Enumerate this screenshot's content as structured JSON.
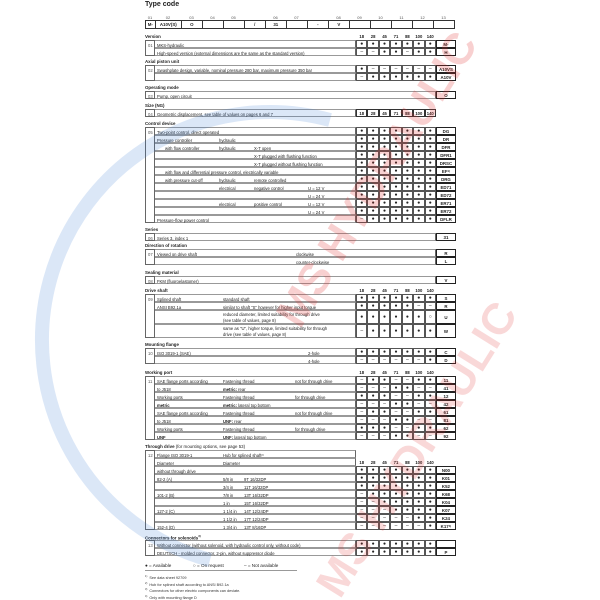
{
  "title": "Type code",
  "type_code": {
    "labels": [
      "01",
      "02",
      "03",
      "04",
      "05",
      "",
      "06",
      "07",
      "",
      "08",
      "09",
      "10",
      "11",
      "12",
      "13"
    ],
    "values": [
      "M-",
      "A10V(S)",
      "O",
      "",
      "",
      "/",
      "31",
      "",
      "-",
      "V",
      "",
      "",
      "",
      "",
      ""
    ]
  },
  "sizes": [
    "18",
    "28",
    "45",
    "71",
    "88",
    "100",
    "140"
  ],
  "sections": [
    {
      "id": "version",
      "num": "01",
      "title": "Version",
      "sizes_header": true,
      "rows": [
        {
          "desc": [
            "MKS-hydraulic"
          ],
          "m": "●●●●●●●",
          "code": "M-"
        },
        {
          "desc": [
            "High-speed version (external dimensions are the same as the standard version)"
          ],
          "m": "––●●–●●",
          "code": "H"
        }
      ]
    },
    {
      "id": "axial",
      "num": "02",
      "title": "Axial piston unit",
      "rows": [
        {
          "desc": [
            "Swashplate design, variable, nominal pressure 280 bar, maximum pressure 350 bar"
          ],
          "m": "●––––––",
          "code": "A10VS"
        },
        {
          "desc": [
            ""
          ],
          "m": "–●●●●●●",
          "code": "A10V"
        }
      ]
    },
    {
      "id": "opmode",
      "num": "03",
      "title": "Operating mode",
      "rows": [
        {
          "desc": [
            "Pump, open circuit"
          ],
          "code": "O"
        }
      ]
    },
    {
      "id": "size",
      "num": "04",
      "title": "Size (NG)",
      "rows": [
        {
          "desc": [
            "Geometric displacement, see table of values on pages 6 and 7"
          ],
          "sizes_box": true
        }
      ]
    },
    {
      "id": "control",
      "num": "05",
      "title": "Control device",
      "rows": [
        {
          "desc": [
            "Two-point control, direct operated"
          ],
          "m": "●●●●●●●",
          "code": "DG"
        },
        {
          "desc": [
            "Pressure controller",
            "",
            "hydraulic"
          ],
          "m": "●●●●●●●",
          "code": "DR"
        },
        {
          "desc": [
            "",
            "with flow controller",
            "hydraulic",
            "X-T open"
          ],
          "m": "●●●●●●●",
          "code": "DFR"
        },
        {
          "desc": [
            "",
            "",
            "",
            "X-T plugged with flushing function"
          ],
          "m": "●●●●●●●",
          "code": "DFR1"
        },
        {
          "desc": [
            "",
            "",
            "",
            "X-T plugged without flushing function"
          ],
          "m": "●●●●●●●",
          "code": "DRSC"
        },
        {
          "desc": [
            "",
            "with flow and differential pressure control, electrically variable"
          ],
          "m": "●●●●●●●",
          "code": "EF",
          "code_sup": "1)"
        },
        {
          "desc": [
            "",
            "with pressure cut-off",
            "hydraulic",
            "remote controlled"
          ],
          "m": "●●●●●●●",
          "code": "DRG"
        },
        {
          "desc": [
            "",
            "",
            "electrical",
            "negative control",
            "U = 12 V"
          ],
          "m": "●●●●●●●",
          "code": "ED71"
        },
        {
          "desc": [
            "",
            "",
            "",
            "",
            "U = 24 V"
          ],
          "m": "●●●●●●●",
          "code": "ED72"
        },
        {
          "desc": [
            "",
            "",
            "electrical",
            "positive control",
            "U = 12 V"
          ],
          "m": "●●●●●●●",
          "code": "ER71"
        },
        {
          "desc": [
            "",
            "",
            "",
            "",
            "U = 24 V"
          ],
          "m": "●●●●●●●",
          "code": "ER72"
        },
        {
          "desc": [
            "Pressure-flow power control"
          ],
          "m": "–●●●●●●",
          "code": "DFLR"
        }
      ]
    },
    {
      "id": "series",
      "num": "06",
      "title": "Series",
      "rows": [
        {
          "desc": [
            "Series 3, index 1"
          ],
          "code": "31"
        }
      ]
    },
    {
      "id": "direction",
      "num": "07",
      "title": "Direction of rotation",
      "rows": [
        {
          "desc": [
            "Viewed on drive shaft",
            "clockwise"
          ],
          "code": "R"
        },
        {
          "desc": [
            "",
            "counter-clockwise"
          ],
          "code": "L"
        }
      ]
    },
    {
      "id": "sealing",
      "num": "08",
      "title": "Sealing material",
      "rows": [
        {
          "desc": [
            "FKM (fluoroelastomer)"
          ],
          "code": "V"
        }
      ]
    },
    {
      "id": "drive",
      "num": "09",
      "title": "Drive shaft",
      "sizes_header": true,
      "rows": [
        {
          "desc": [
            "Splined shaft",
            "standard shaft"
          ],
          "m": "●●●●●●●",
          "code": "S"
        },
        {
          "desc": [
            "ANSI B92.1a",
            "similar to shaft \"S\" however for higher input torque"
          ],
          "m": "●●●●●––",
          "code": "R"
        },
        {
          "desc": [
            "",
            "reduced diameter, limited suitability for through drive\n(see table of values, page 8)"
          ],
          "m": "●●●●●●○",
          "code": "U"
        },
        {
          "desc": [
            "",
            "same as \"U\", higher torque, limited suitability for through\ndrive (see table of values, page 8)"
          ],
          "m": "–●●●●●●",
          "code": "W"
        }
      ]
    },
    {
      "id": "mounting",
      "num": "10",
      "title": "Mounting flange",
      "rows": [
        {
          "desc": [
            "ISO 3019-1 (SAE)",
            "2-hole"
          ],
          "m": "●●●●●●●",
          "code": "C"
        },
        {
          "desc": [
            "",
            "4-hole"
          ],
          "m": "––––––●",
          "code": "D"
        }
      ]
    },
    {
      "id": "working",
      "num": "11",
      "title": "Working port",
      "sizes_header": true,
      "rows": [
        {
          "desc": [
            "SAE flange ports according",
            "Fastening thread",
            "not for through drive"
          ],
          "m": "–●●––●●",
          "code": "11"
        },
        {
          "desc": [
            "to J518",
            "metric: rear"
          ],
          "m": "–––●●––",
          "code": "41"
        },
        {
          "desc": [
            "Working ports",
            "Fastening thread",
            "for through drive"
          ],
          "m": "●●●––●●",
          "code": "12"
        },
        {
          "desc": [
            "metric",
            "metric: lateral top bottom"
          ],
          "m": "–––●●––",
          "code": "42"
        },
        {
          "desc": [
            "SAE flange ports according",
            "Fastening thread",
            "not for through drive"
          ],
          "m": "–●●––●●",
          "code": "61"
        },
        {
          "desc": [
            "to J518",
            "UNF: rear"
          ],
          "m": "–––●●––",
          "code": "81"
        },
        {
          "desc": [
            "Working ports",
            "Fastening thread",
            "for through drive"
          ],
          "m": "●●●––●●",
          "code": "62"
        },
        {
          "desc": [
            "UNF",
            "UNF: lateral top bottom"
          ],
          "m": "–––●●––",
          "code": "92"
        }
      ]
    },
    {
      "id": "through",
      "num": "12",
      "title": "Through drive",
      "title_note": " (for mounting options, see page 53)",
      "rows": [
        {
          "desc": [
            "Flange ISO 3019-1",
            "Hub for splined shaft²⁾"
          ],
          "short": true
        },
        {
          "desc": [
            "Diameter",
            "Diameter"
          ],
          "short": true,
          "size_header_row": true
        },
        {
          "desc": [
            "without through drive"
          ],
          "m": "●●●●●●●",
          "code": "N00"
        },
        {
          "desc": [
            "82-2 (A)",
            "5/8 in",
            "9T 16/32DP"
          ],
          "m": "●●●●●●●",
          "code": "K01"
        },
        {
          "desc": [
            "",
            "3/4 in",
            "11T 16/32DP"
          ],
          "m": "●●●●●●●",
          "code": "K52"
        },
        {
          "desc": [
            "101-2 (B)",
            "7/8 in",
            "13T 16/32DP"
          ],
          "m": "–●●●●●●",
          "code": "K68"
        },
        {
          "desc": [
            "",
            "1 in",
            "15T 16/32DP"
          ],
          "m": "––●●●●●",
          "code": "K04"
        },
        {
          "desc": [
            "127-2 (C)",
            "1 1/4 in",
            "14T 12/24DP"
          ],
          "m": "–––●●●●",
          "code": "K07"
        },
        {
          "desc": [
            "",
            "1 1/2 in",
            "17T 12/24DP"
          ],
          "m": "–––––●●",
          "code": "K24"
        },
        {
          "desc": [
            "152-4 (D)",
            "1 3/4 in",
            "13T 8/16DP"
          ],
          "m": "––––––●",
          "code": "K17",
          "code_sup": "4)"
        }
      ]
    },
    {
      "id": "connectors",
      "num": "13",
      "title": "Connectors for solenoids",
      "title_sup": "3)",
      "rows": [
        {
          "desc": [
            "Without connector (without solenoid, with hydraulic control only, without code)"
          ],
          "m": "●●●●●●●",
          "code": ""
        },
        {
          "desc": [
            "DEUTSCH - molded connector, 2-pin, without suppressor diode"
          ],
          "m": "●●●●●●●",
          "code": "P"
        }
      ]
    }
  ],
  "legend": [
    "● = Available",
    "○ = On request",
    "– = Not available"
  ],
  "footnotes": [
    {
      "mark": "1)",
      "text": "See data sheet 92709"
    },
    {
      "mark": "2)",
      "text": "Hub for splined shaft according to ANSI B92.1a"
    },
    {
      "mark": "3)",
      "text": "Connectors for other electric components can deviate."
    },
    {
      "mark": "4)",
      "text": "Only with mounting flange D"
    }
  ],
  "watermark": {
    "text": "MS HYDRAULIC",
    "color_red": "#e03030",
    "color_blue": "#3a7bd5"
  }
}
